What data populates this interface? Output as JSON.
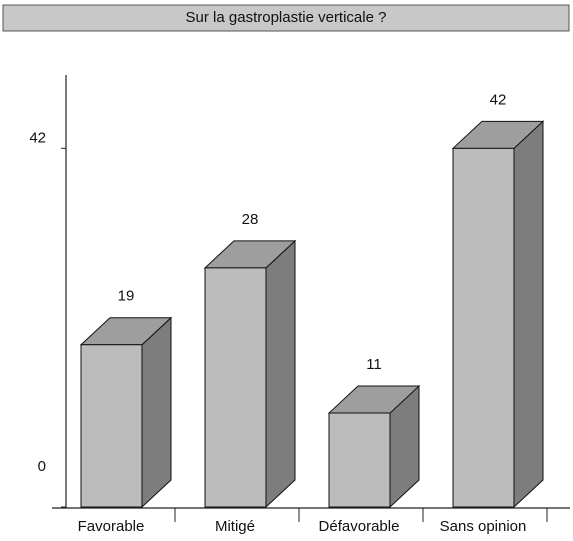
{
  "chart_data": {
    "type": "bar3d",
    "title": "Sur la gastroplastie verticale ?",
    "categories": [
      "Favorable",
      "Mitigé",
      "Défavorable",
      "Sans opinion"
    ],
    "values": [
      19,
      28,
      11,
      42
    ],
    "color": "#bcbcbc",
    "ylim": [
      0,
      50
    ],
    "yticks": [
      0,
      42
    ],
    "grid": false
  }
}
